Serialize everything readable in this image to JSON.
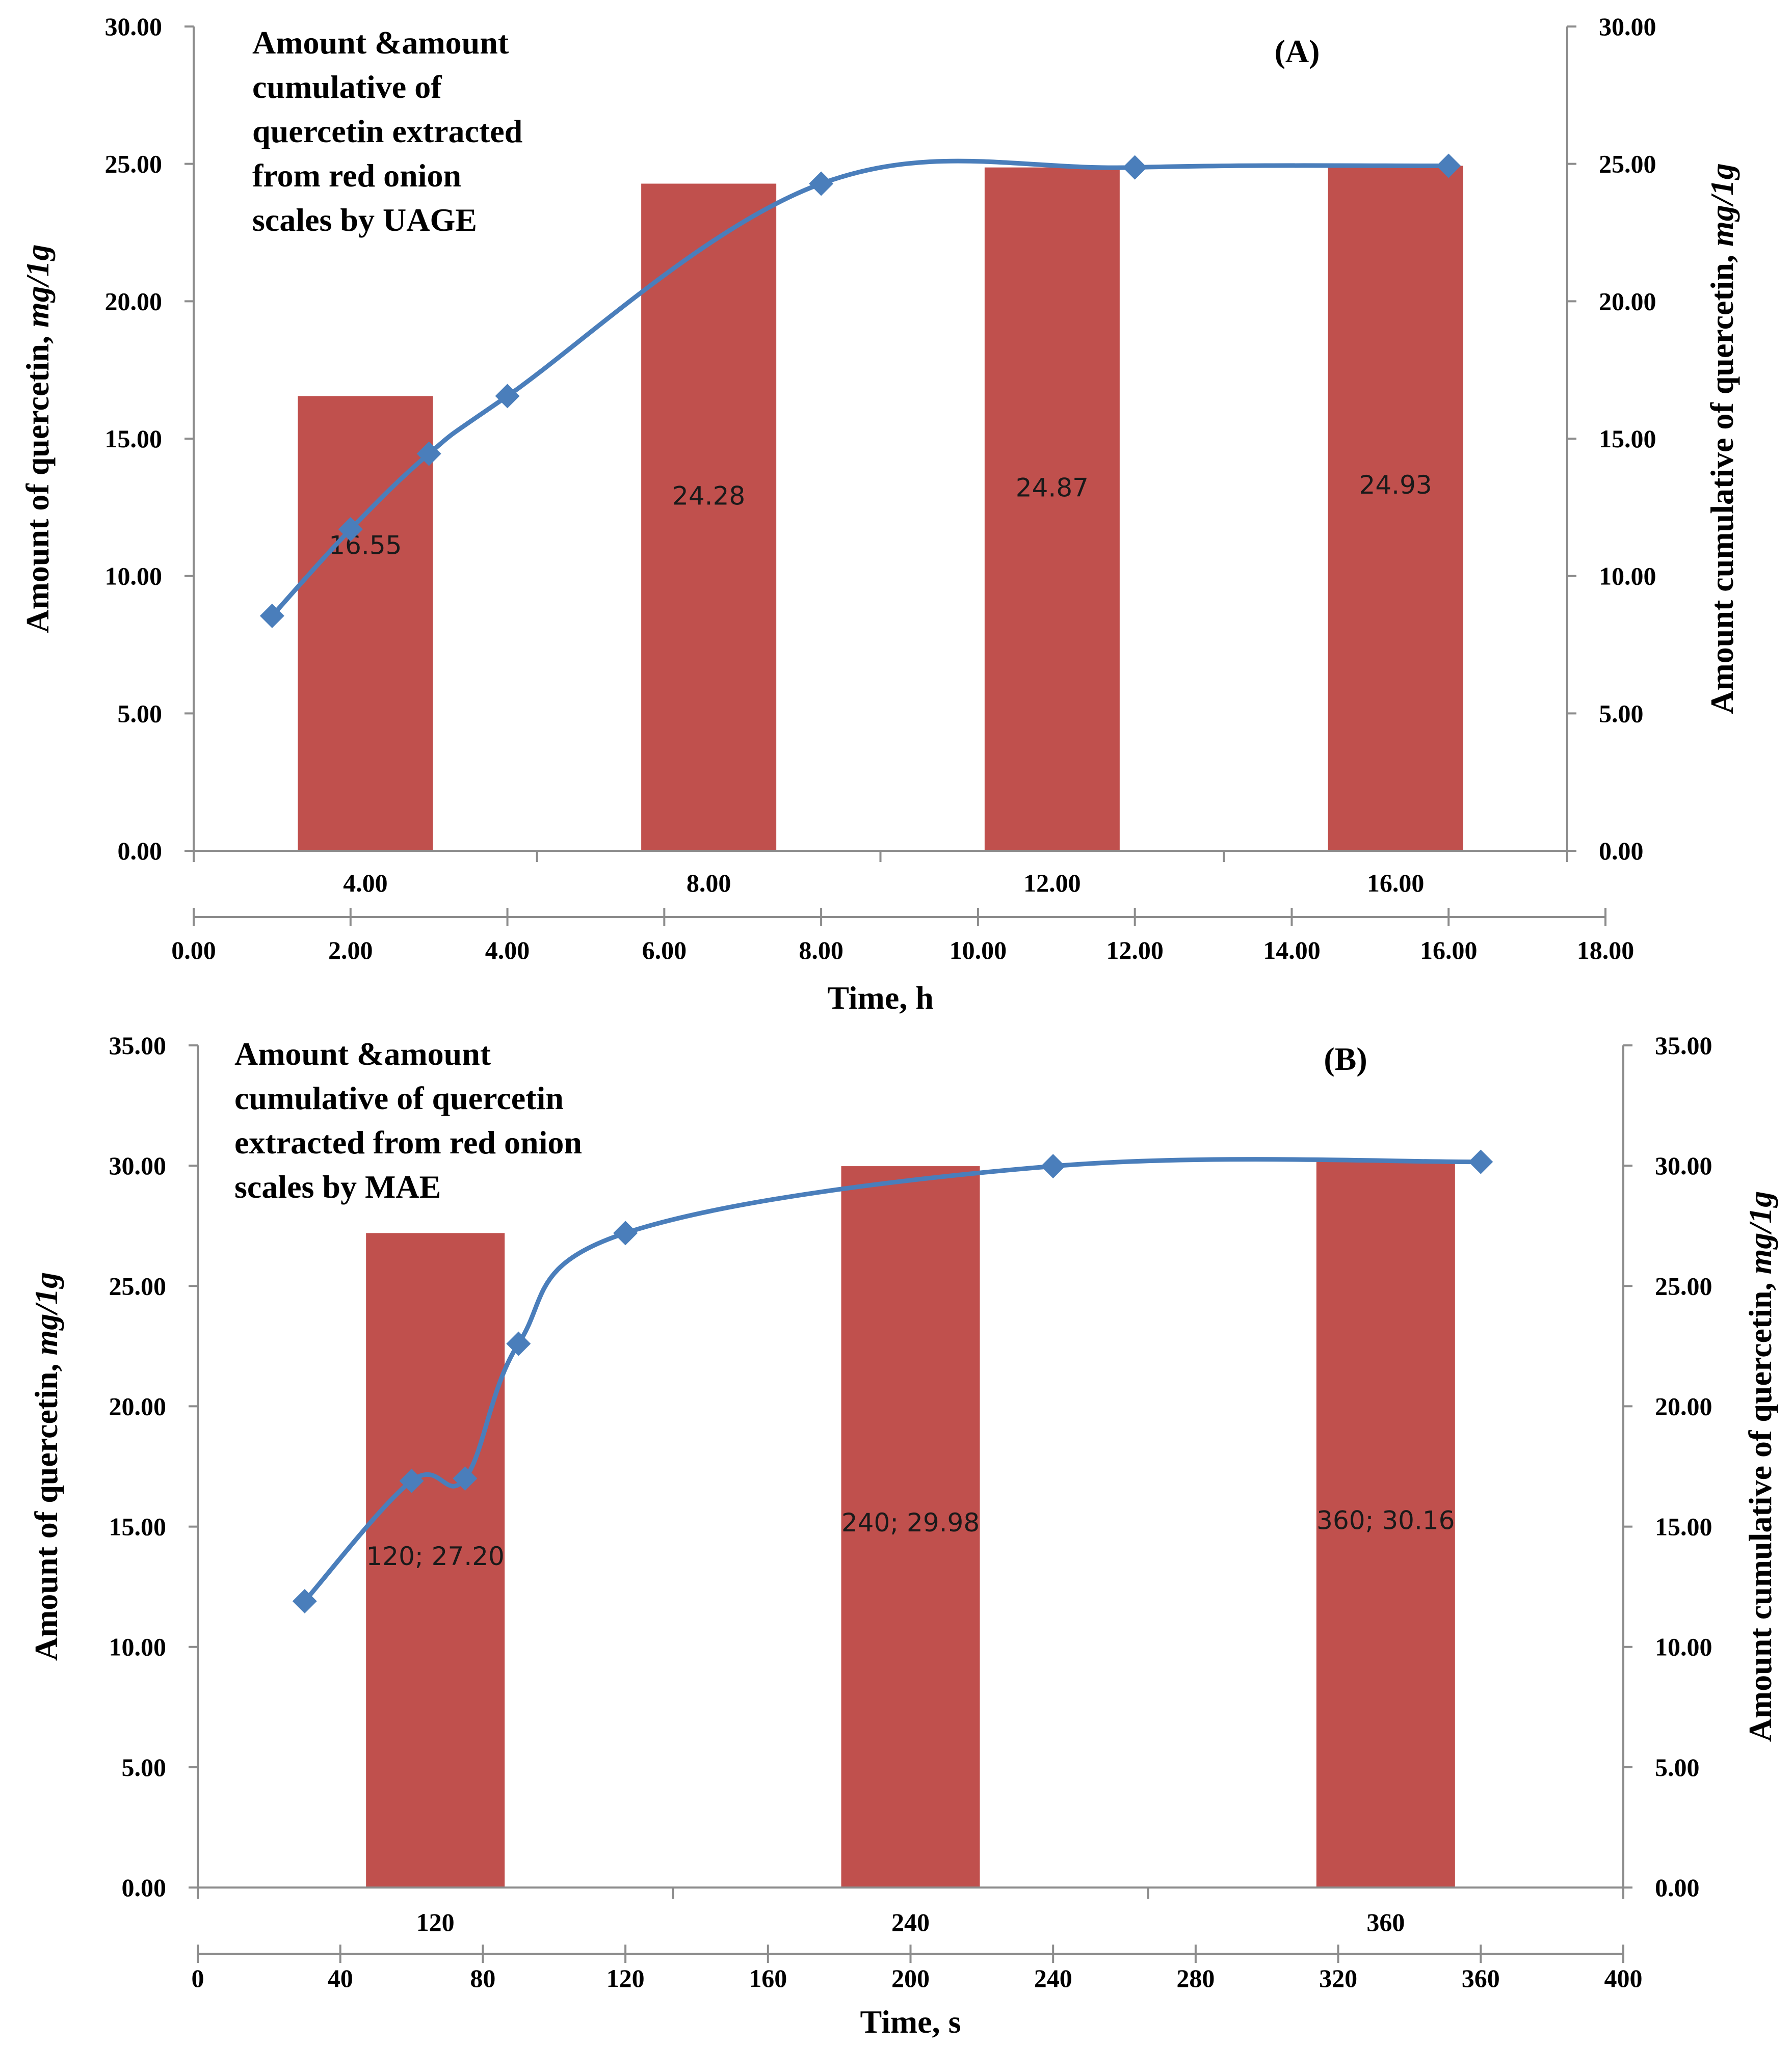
{
  "colors": {
    "bar": "#c0504d",
    "line": "#4a7ebb",
    "axis": "#8c8c8c",
    "text": "#000000"
  },
  "chart_data": [
    {
      "id": "A",
      "panel_label": "(A)",
      "type": "bar+line",
      "title_lines": [
        "Amount &amount",
        "cumulative of",
        "quercetin extracted",
        "from red onion",
        "scales by UAGE"
      ],
      "ylabel_left": "Amount of quercetin, mg/1g",
      "ylabel_right": "Amount cumulative of quercetin, mg/1g",
      "xlabel": "Time, h",
      "ylim": [
        0,
        30
      ],
      "yticks": [
        "0.00",
        "5.00",
        "10.00",
        "15.00",
        "20.00",
        "25.00",
        "30.00"
      ],
      "bar_categories": [
        "4.00",
        "8.00",
        "12.00",
        "16.00"
      ],
      "bar_values": [
        16.55,
        24.28,
        24.87,
        24.93
      ],
      "bar_labels": [
        "16.55",
        "24.28",
        "24.87",
        "24.93"
      ],
      "bar_label_y": [
        10.8,
        12.6,
        12.9,
        13.0
      ],
      "xlim": [
        0,
        18
      ],
      "xticks": [
        "0.00",
        "2.00",
        "4.00",
        "6.00",
        "8.00",
        "10.00",
        "12.00",
        "14.00",
        "16.00",
        "18.00"
      ],
      "line_x": [
        1,
        2,
        3,
        4,
        8,
        12,
        16
      ],
      "line_y": [
        8.55,
        11.7,
        14.45,
        16.55,
        24.28,
        24.87,
        24.93
      ]
    },
    {
      "id": "B",
      "panel_label": "(B)",
      "type": "bar+line",
      "title_lines": [
        "Amount &amount",
        "cumulative of quercetin",
        "extracted from red onion",
        "scales by MAE"
      ],
      "ylabel_left": "Amount of quercetin, mg/1g",
      "ylabel_right": "Amount cumulative of quercetin, mg/1g",
      "xlabel": "Time, s",
      "ylim": [
        0,
        35
      ],
      "yticks": [
        "0.00",
        "5.00",
        "10.00",
        "15.00",
        "20.00",
        "25.00",
        "30.00",
        "35.00"
      ],
      "bar_categories": [
        "120",
        "240",
        "360"
      ],
      "bar_values": [
        27.2,
        29.98,
        30.16
      ],
      "bar_labels": [
        "120; 27.20",
        "240; 29.98",
        "360; 30.16"
      ],
      "bar_label_y": [
        13.4,
        14.8,
        14.9
      ],
      "xlim": [
        0,
        400
      ],
      "xticks": [
        "0",
        "40",
        "80",
        "120",
        "160",
        "200",
        "240",
        "280",
        "320",
        "360",
        "400"
      ],
      "line_x": [
        30,
        60,
        75,
        90,
        120,
        240,
        360
      ],
      "line_y": [
        11.9,
        16.9,
        17.0,
        22.6,
        27.2,
        29.98,
        30.16
      ]
    }
  ]
}
